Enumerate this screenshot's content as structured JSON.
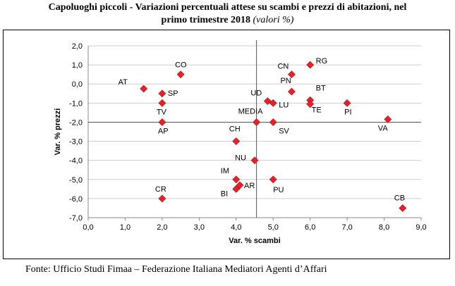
{
  "chart_data": {
    "type": "scatter",
    "title_line1": "Capoluoghi piccoli - Variazioni percentuali attese su scambi e prezzi di abitazioni, nel",
    "title_line2": "primo trimestre 2018",
    "title_note": "(valori %)",
    "xlabel": "Var. % scambi",
    "ylabel": "Var. % prezzi",
    "xlim": [
      0,
      9
    ],
    "ylim": [
      -7,
      2
    ],
    "xticks": [
      "0,0",
      "1,0",
      "2,0",
      "3,0",
      "4,0",
      "5,0",
      "6,0",
      "7,0",
      "8,0",
      "9,0"
    ],
    "yticks": [
      "2,0",
      "1,0",
      "0,0",
      "-1,0",
      "-2,0",
      "-3,0",
      "-4,0",
      "-5,0",
      "-6,0",
      "-7,0"
    ],
    "grid": "horizontal",
    "marker_color": "#e8202a",
    "reference_lines": {
      "x": 4.55,
      "y": -2.0
    },
    "points": [
      {
        "label": "AT",
        "x": 1.5,
        "y": -0.25
      },
      {
        "label": "CO",
        "x": 2.5,
        "y": 0.5
      },
      {
        "label": "SP",
        "x": 2.0,
        "y": -0.5
      },
      {
        "label": "TV",
        "x": 2.0,
        "y": -1.0
      },
      {
        "label": "AP",
        "x": 2.0,
        "y": -2.0
      },
      {
        "label": "CR",
        "x": 2.0,
        "y": -6.0
      },
      {
        "label": "CH",
        "x": 4.0,
        "y": -3.0
      },
      {
        "label": "NU",
        "x": 4.5,
        "y": -4.0
      },
      {
        "label": "IM",
        "x": 4.0,
        "y": -5.0
      },
      {
        "label": "AR",
        "x": 4.1,
        "y": -5.3
      },
      {
        "label": "BI",
        "x": 4.0,
        "y": -5.5
      },
      {
        "label": "UD",
        "x": 4.85,
        "y": -0.9
      },
      {
        "label": "LU",
        "x": 5.0,
        "y": -1.0
      },
      {
        "label": "MEDIA",
        "x": 4.55,
        "y": -2.0
      },
      {
        "label": "SV",
        "x": 5.0,
        "y": -2.0
      },
      {
        "label": "PU",
        "x": 5.0,
        "y": -5.0
      },
      {
        "label": "CN",
        "x": 5.5,
        "y": 0.5
      },
      {
        "label": "PN",
        "x": 5.5,
        "y": -0.4
      },
      {
        "label": "RG",
        "x": 6.0,
        "y": 1.0
      },
      {
        "label": "BT",
        "x": 6.0,
        "y": -0.85
      },
      {
        "label": "TE",
        "x": 6.0,
        "y": -1.05
      },
      {
        "label": "PI",
        "x": 7.0,
        "y": -1.0
      },
      {
        "label": "VA",
        "x": 8.1,
        "y": -1.85
      },
      {
        "label": "CB",
        "x": 8.5,
        "y": -6.5
      }
    ]
  },
  "source": "Fonte: Ufficio Studi Fimaa – Federazione Italiana Mediatori Agenti d’Affari"
}
